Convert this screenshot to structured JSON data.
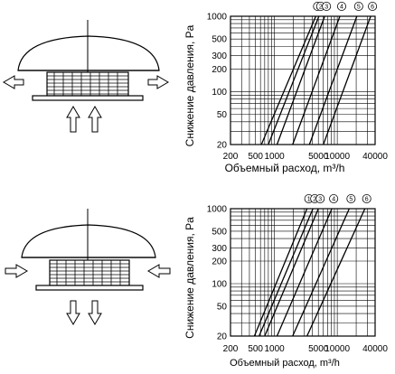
{
  "chart_data": [
    {
      "type": "line",
      "title": "",
      "xlabel": "Объемный расход, m³/h",
      "ylabel": "Снижение давления, Pa",
      "x_scale": "log",
      "y_scale": "log",
      "xlim": [
        200,
        40000
      ],
      "ylim": [
        20,
        1000
      ],
      "x_ticks": [
        200,
        500,
        1000,
        5000,
        10000,
        40000
      ],
      "x_tick_labels": [
        "200",
        "500",
        "1000",
        "5000",
        "10000",
        "40000"
      ],
      "y_ticks": [
        20,
        50,
        100,
        200,
        300,
        500,
        1000
      ],
      "y_tick_labels": [
        "20",
        "50",
        "100",
        "200",
        "300",
        "500",
        "1000"
      ],
      "grid": true,
      "series": [
        {
          "name": "1",
          "x": [
            620,
            4550
          ],
          "y": [
            20,
            1000
          ]
        },
        {
          "name": "2",
          "x": [
            800,
            5100
          ],
          "y": [
            20,
            1000
          ]
        },
        {
          "name": "3",
          "x": [
            1100,
            6300
          ],
          "y": [
            20,
            1000
          ]
        },
        {
          "name": "4",
          "x": [
            1950,
            11000
          ],
          "y": [
            20,
            1000
          ]
        },
        {
          "name": "5",
          "x": [
            3600,
            20500
          ],
          "y": [
            20,
            1000
          ]
        },
        {
          "name": "6",
          "x": [
            6000,
            34000
          ],
          "y": [
            20,
            1000
          ]
        }
      ]
    },
    {
      "type": "line",
      "title": "",
      "xlabel": "Объемный расход, m³/h",
      "ylabel": "Снижение давления, Pa",
      "x_scale": "log",
      "y_scale": "log",
      "xlim": [
        200,
        40000
      ],
      "ylim": [
        20,
        1000
      ],
      "x_ticks": [
        200,
        500,
        1000,
        5000,
        10000,
        40000
      ],
      "x_tick_labels": [
        "200",
        "500",
        "1000",
        "5000",
        "10000",
        "40000"
      ],
      "y_ticks": [
        20,
        50,
        100,
        200,
        300,
        500,
        1000
      ],
      "y_tick_labels": [
        "20",
        "50",
        "100",
        "200",
        "300",
        "500",
        "1000"
      ],
      "grid": true,
      "series": [
        {
          "name": "1",
          "x": [
            480,
            3300
          ],
          "y": [
            20,
            1000
          ]
        },
        {
          "name": "2",
          "x": [
            570,
            4100
          ],
          "y": [
            20,
            1000
          ]
        },
        {
          "name": "3",
          "x": [
            700,
            5000
          ],
          "y": [
            20,
            1000
          ]
        },
        {
          "name": "4",
          "x": [
            1100,
            8200
          ],
          "y": [
            20,
            1000
          ]
        },
        {
          "name": "5",
          "x": [
            1950,
            15500
          ],
          "y": [
            20,
            1000
          ]
        },
        {
          "name": "6",
          "x": [
            3300,
            27500
          ],
          "y": [
            20,
            1000
          ]
        }
      ]
    }
  ]
}
